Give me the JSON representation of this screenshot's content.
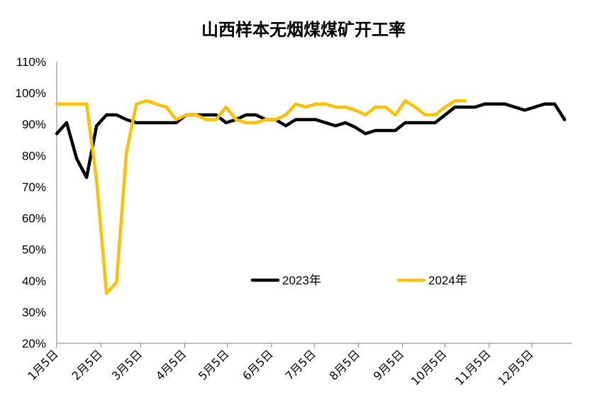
{
  "chart_data": {
    "type": "line",
    "title": "山西样本无烟煤煤矿开工率",
    "xlabel": "",
    "ylabel": "",
    "y_ticks": [
      "20%",
      "30%",
      "40%",
      "50%",
      "60%",
      "70%",
      "80%",
      "90%",
      "100%",
      "110%"
    ],
    "ylim": [
      20,
      110
    ],
    "x_ticks": [
      "1月5日",
      "2月5日",
      "3月5日",
      "4月5日",
      "5月5日",
      "6月5日",
      "7月5日",
      "8月5日",
      "9月5日",
      "10月5日",
      "11月5日",
      "12月5日"
    ],
    "x_unit": "week",
    "legend_position": "center-bottom",
    "grid": false,
    "series": [
      {
        "name": "2023年",
        "color": "#000000",
        "values": [
          87,
          90.5,
          79,
          73,
          89.5,
          93,
          93,
          91.5,
          90.5,
          90.5,
          90.5,
          90.5,
          90.5,
          93,
          93,
          93,
          93,
          90.5,
          91.5,
          93,
          93,
          91.5,
          91.5,
          89.5,
          91.5,
          91.5,
          91.5,
          90.5,
          89.5,
          90.5,
          89,
          87,
          88,
          88,
          88,
          90.5,
          90.5,
          90.5,
          90.5,
          93,
          95.5,
          95.5,
          95.5,
          96.5,
          96.5,
          96.5,
          95.5,
          94.5,
          95.5,
          96.5,
          96.5,
          91.5
        ]
      },
      {
        "name": "2024年",
        "color": "#FFC000",
        "values": [
          96.5,
          96.5,
          96.5,
          96.5,
          72,
          36,
          39.5,
          81,
          96.5,
          97.5,
          96.5,
          95.5,
          91.5,
          93,
          93,
          91.5,
          91.5,
          95.5,
          91.5,
          90.5,
          90.5,
          91.5,
          91.5,
          93,
          96.5,
          95.5,
          96.5,
          96.5,
          95.5,
          95.5,
          94.5,
          93,
          95.5,
          95.5,
          93,
          97.5,
          95.5,
          93,
          93,
          95.5,
          97.5,
          97.5
        ]
      }
    ]
  }
}
